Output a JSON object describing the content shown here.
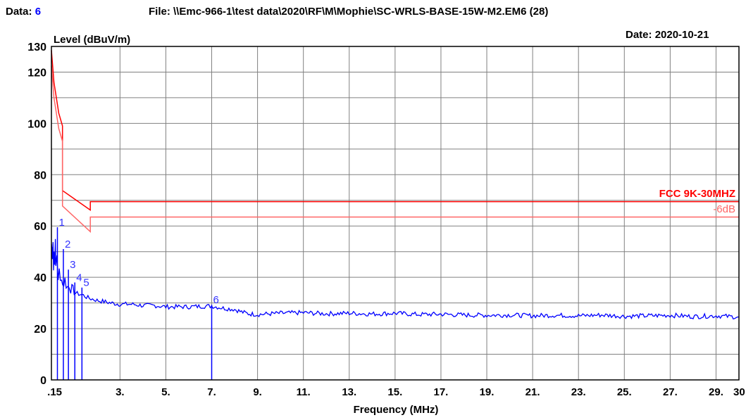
{
  "header": {
    "data_label": "Data:",
    "data_value": "6",
    "file_label": "File:",
    "file_path": "\\\\Emc-966-1\\test data\\2020\\RF\\M\\Mophie\\SC-WRLS-BASE-15W-M2.EM6  (28)",
    "date_label": "Date:",
    "date_value": "2020-10-21"
  },
  "colors": {
    "trace": "#0000ff",
    "limit": "#ff0000",
    "margin_line": "#ff6666",
    "grid": "#808080",
    "marker": "#3333ff"
  },
  "chart_data": {
    "type": "line",
    "xlabel": "Frequency (MHz)",
    "ylabel": "Level (dBuV/m)",
    "xlim": [
      0.009,
      30
    ],
    "ylim": [
      0,
      130
    ],
    "x_tick_values": [
      0.15,
      3,
      5,
      7,
      9,
      11,
      13,
      15,
      17,
      19,
      21,
      23,
      25,
      27,
      29,
      30
    ],
    "x_tick_labels": [
      ".15",
      "3.",
      "5.",
      "7.",
      "9.",
      "11.",
      "13.",
      "15.",
      "17.",
      "19.",
      "21.",
      "23.",
      "25.",
      "27.",
      "29.",
      "30"
    ],
    "y_tick_values": [
      0,
      20,
      40,
      60,
      80,
      100,
      120,
      130
    ],
    "y_tick_labels": [
      "0",
      "20",
      "40",
      "60",
      "80",
      "100",
      "120",
      "130"
    ],
    "grid": true,
    "limit_lines": [
      {
        "name": "FCC 9K-30MHZ",
        "points": [
          [
            0.009,
            128.5
          ],
          [
            0.12,
            116.0
          ],
          [
            0.33,
            104.0
          ],
          [
            0.49,
            99.0
          ],
          [
            0.49,
            73.8
          ],
          [
            1.705,
            66.2
          ],
          [
            1.705,
            69.5
          ],
          [
            30,
            69.5
          ]
        ]
      },
      {
        "name": "-6dB",
        "points": [
          [
            0.009,
            122.5
          ],
          [
            0.12,
            110.0
          ],
          [
            0.33,
            98.0
          ],
          [
            0.49,
            93.0
          ],
          [
            0.49,
            67.8
          ],
          [
            1.705,
            57.8
          ],
          [
            1.705,
            63.5
          ],
          [
            30,
            63.5
          ]
        ]
      }
    ],
    "series": [
      {
        "x": [
          0.009,
          0.03,
          0.05,
          0.08,
          0.1,
          0.12,
          0.15,
          0.18,
          0.2,
          0.25,
          0.3,
          0.35,
          0.4,
          0.45,
          0.5,
          0.6,
          0.7,
          0.8,
          0.9,
          1.0,
          1.2,
          1.4,
          1.6,
          1.8,
          2.0,
          2.3,
          2.6,
          3.0,
          3.5,
          4.0,
          4.5,
          5.0,
          5.5,
          6.0,
          6.5,
          7.0,
          7.5,
          8.0,
          8.3,
          8.6,
          9.0,
          10.0,
          11.0,
          12.0,
          13.0,
          14.0,
          15.0,
          16.0,
          17.0,
          18.0,
          19.0,
          20.0,
          21.0,
          22.0,
          23.0,
          24.0,
          25.0,
          26.0,
          27.0,
          28.0,
          29.0,
          30.0
        ],
        "values": [
          53,
          51,
          49,
          55,
          43,
          50,
          47,
          53,
          44,
          49,
          40,
          42,
          38,
          41,
          37,
          39,
          36,
          37,
          35,
          34,
          33.5,
          33,
          32,
          31.5,
          31,
          30.5,
          30,
          29.5,
          29.5,
          29,
          29,
          28.5,
          28.5,
          28.5,
          28.7,
          28.8,
          28,
          27.5,
          26.5,
          25.8,
          25.5,
          26,
          26.2,
          25.8,
          26,
          25.7,
          26,
          25.5,
          25.6,
          25.3,
          25.2,
          25.3,
          25,
          25.2,
          25,
          25.3,
          24.8,
          25,
          25.2,
          24.7,
          25,
          24.5
        ]
      }
    ],
    "markers": [
      {
        "label": "1",
        "x": 0.27,
        "y": 59.5
      },
      {
        "label": "2",
        "x": 0.53,
        "y": 51.0
      },
      {
        "label": "3",
        "x": 0.75,
        "y": 43.0
      },
      {
        "label": "4",
        "x": 1.03,
        "y": 38.0
      },
      {
        "label": "5",
        "x": 1.34,
        "y": 36.0
      },
      {
        "label": "6",
        "x": 7.0,
        "y": 29.3
      }
    ]
  }
}
